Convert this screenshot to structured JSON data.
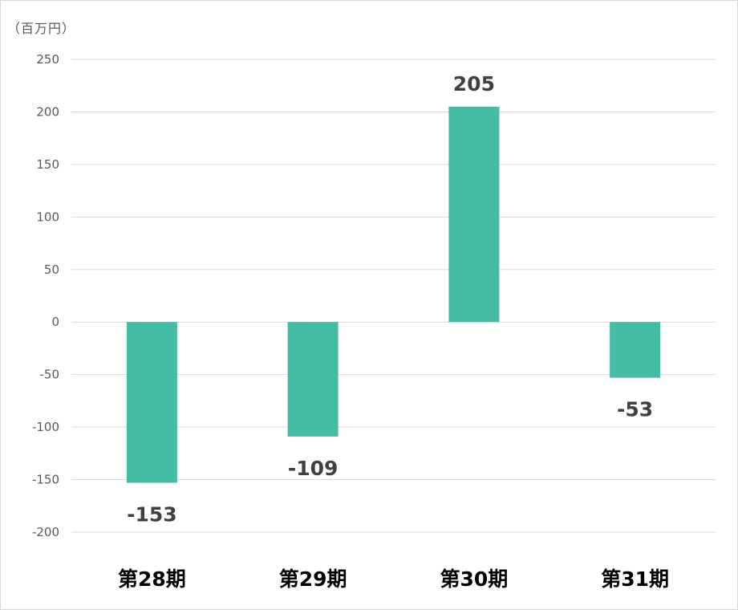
{
  "chart_data": {
    "type": "bar",
    "unit_label": "（百万円）",
    "categories": [
      "第28期",
      "第29期",
      "第30期",
      "第31期"
    ],
    "values": [
      -153,
      -109,
      205,
      -53
    ],
    "data_labels": [
      "-153",
      "-109",
      "205",
      "-53"
    ],
    "yticks": [
      250,
      200,
      150,
      100,
      50,
      0,
      -50,
      -100,
      -150,
      -200
    ],
    "ytick_labels": [
      "250",
      "200",
      "150",
      "100",
      "50",
      "0",
      "-50",
      "-100",
      "-150",
      "-200"
    ],
    "ylim": [
      -200,
      250
    ],
    "grid": true,
    "legend": "none",
    "colors": {
      "bar": "#45bca6",
      "grid": "#d9d9d9",
      "tick_text": "#595959",
      "category_text": "#000000",
      "data_label_text": "#404040"
    }
  }
}
